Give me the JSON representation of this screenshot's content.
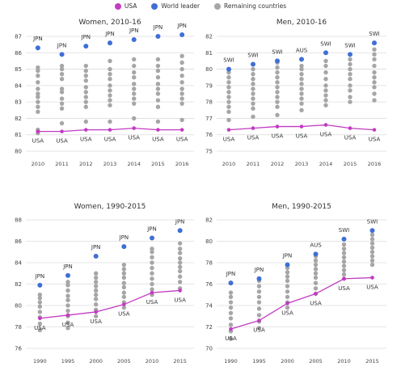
{
  "legend": {
    "items": [
      {
        "label": "USA",
        "color": "#c23bc2"
      },
      {
        "label": "World leader",
        "color": "#3f6fd6"
      },
      {
        "label": "Remaining countries",
        "color": "#a6a6a6"
      }
    ]
  },
  "chart_data": [
    {
      "type": "scatter",
      "title": "Women, 2010-16",
      "x": [
        2010,
        2011,
        2012,
        2013,
        2014,
        2015,
        2016
      ],
      "ylim": [
        80,
        87
      ],
      "yticks": [
        80,
        81,
        82,
        83,
        84,
        85,
        86,
        87
      ],
      "grid": true,
      "usa": {
        "name": "USA",
        "label": "USA",
        "values": [
          81.2,
          81.2,
          81.3,
          81.3,
          81.4,
          81.3,
          81.3
        ]
      },
      "leader": {
        "labels": [
          "JPN",
          "JPN",
          "JPN",
          "JPN",
          "JPN",
          "JPN",
          "JPN"
        ],
        "values": [
          86.3,
          85.9,
          86.4,
          86.6,
          86.8,
          87.0,
          87.1
        ]
      },
      "others": [
        [
          81.1,
          81.3,
          82.4,
          82.7,
          83.0,
          83.3,
          83.5,
          83.8,
          84.2,
          84.6,
          84.9,
          85.1
        ],
        [
          81.7,
          82.6,
          82.9,
          83.2,
          83.6,
          83.8,
          84.4,
          84.7,
          85.0,
          85.2
        ],
        [
          81.8,
          82.7,
          83.0,
          83.3,
          83.6,
          83.9,
          84.3,
          84.6,
          84.9,
          85.2
        ],
        [
          81.8,
          82.8,
          83.1,
          83.4,
          83.7,
          84.0,
          84.4,
          84.7,
          85.0,
          85.5
        ],
        [
          82.0,
          82.9,
          83.2,
          83.5,
          83.8,
          84.1,
          84.5,
          84.8,
          85.2,
          85.6
        ],
        [
          81.8,
          82.7,
          83.1,
          83.5,
          83.8,
          84.1,
          84.5,
          84.9,
          85.2,
          85.6
        ],
        [
          81.9,
          82.9,
          83.2,
          83.5,
          83.8,
          84.2,
          84.6,
          85.0,
          85.4,
          85.8
        ]
      ]
    },
    {
      "type": "scatter",
      "title": "Men, 2010-16",
      "x": [
        2010,
        2011,
        2012,
        2013,
        2014,
        2015,
        2016
      ],
      "ylim": [
        75,
        82
      ],
      "yticks": [
        75,
        76,
        77,
        78,
        79,
        80,
        81,
        82
      ],
      "grid": true,
      "usa": {
        "name": "USA",
        "label": "USA",
        "values": [
          76.3,
          76.4,
          76.5,
          76.5,
          76.6,
          76.4,
          76.3
        ]
      },
      "leader": {
        "labels": [
          "SWI",
          "SWI",
          "SWI",
          "AUS",
          "SWI",
          "SWI",
          "SWI"
        ],
        "values": [
          80.0,
          80.3,
          80.5,
          80.6,
          81.0,
          80.9,
          81.6
        ]
      },
      "others": [
        [
          76.9,
          77.4,
          77.7,
          78.0,
          78.3,
          78.6,
          78.9,
          79.2,
          79.5,
          79.8
        ],
        [
          77.1,
          77.6,
          77.9,
          78.2,
          78.5,
          78.8,
          79.1,
          79.4,
          79.7,
          80.0
        ],
        [
          77.2,
          77.7,
          78.0,
          78.3,
          78.6,
          78.9,
          79.2,
          79.5,
          79.8,
          80.1,
          80.4
        ],
        [
          77.5,
          77.9,
          78.2,
          78.5,
          78.8,
          79.1,
          79.4,
          79.7,
          80.0,
          80.2
        ],
        [
          77.8,
          78.1,
          78.4,
          78.7,
          79.0,
          79.4,
          79.8,
          80.2,
          80.5
        ],
        [
          78.0,
          78.3,
          78.7,
          79.0,
          79.4,
          79.7,
          80.0,
          80.3,
          80.6
        ],
        [
          78.1,
          78.5,
          78.9,
          79.2,
          79.5,
          79.8,
          80.2,
          80.6,
          80.9,
          81.2
        ]
      ]
    },
    {
      "type": "scatter",
      "title": "Women, 1990-2015",
      "x": [
        1990,
        1995,
        2000,
        2005,
        2010,
        2015
      ],
      "ylim": [
        76,
        88
      ],
      "yticks": [
        76,
        78,
        80,
        82,
        84,
        86,
        88
      ],
      "grid": true,
      "usa": {
        "name": "USA",
        "label": "USA",
        "values": [
          78.8,
          79.1,
          79.4,
          80.1,
          81.2,
          81.4
        ]
      },
      "leader": {
        "labels": [
          "JPN",
          "JPN",
          "JPN",
          "JPN",
          "JPN",
          "JPN"
        ],
        "values": [
          81.9,
          82.8,
          84.6,
          85.5,
          86.3,
          87.0
        ]
      },
      "others": [
        [
          77.7,
          78.3,
          78.9,
          79.4,
          79.9,
          80.3,
          80.7,
          81.0
        ],
        [
          77.9,
          78.4,
          79.0,
          79.5,
          80.0,
          80.5,
          80.9,
          81.4,
          81.9,
          82.2
        ],
        [
          79.0,
          79.6,
          80.1,
          80.6,
          81.0,
          81.4,
          81.8,
          82.2,
          82.6,
          83.0
        ],
        [
          79.8,
          80.3,
          80.8,
          81.2,
          81.7,
          82.1,
          82.6,
          83.0,
          83.4,
          83.8
        ],
        [
          81.0,
          81.5,
          82.0,
          82.5,
          83.0,
          83.5,
          84.0,
          84.5,
          85.0,
          85.3
        ],
        [
          81.6,
          82.2,
          82.7,
          83.2,
          83.6,
          84.0,
          84.4,
          84.9,
          85.3,
          85.8
        ]
      ]
    },
    {
      "type": "scatter",
      "title": "Men, 1990-2015",
      "x": [
        1990,
        1995,
        2000,
        2005,
        2010,
        2015
      ],
      "ylim": [
        70,
        82
      ],
      "yticks": [
        70,
        72,
        74,
        76,
        78,
        80,
        82
      ],
      "grid": true,
      "usa": {
        "name": "USA",
        "label": "USA",
        "values": [
          71.8,
          72.6,
          74.2,
          75.1,
          76.5,
          76.6
        ]
      },
      "leader": {
        "labels": [
          "JPN",
          "JPN",
          "JPN",
          "AUS",
          "SWI",
          "SWI"
        ],
        "values": [
          76.1,
          76.5,
          77.8,
          78.8,
          80.2,
          81.0
        ]
      },
      "others": [
        [
          70.9,
          71.6,
          72.2,
          72.8,
          73.3,
          73.8,
          74.3,
          74.8,
          75.2
        ],
        [
          71.9,
          72.5,
          73.1,
          73.7,
          74.3,
          74.8,
          75.3,
          75.8,
          76.3
        ],
        [
          73.8,
          74.3,
          74.8,
          75.3,
          75.8,
          76.3,
          76.7,
          77.1,
          77.5
        ],
        [
          75.1,
          75.6,
          76.1,
          76.6,
          77.0,
          77.4,
          77.8,
          78.2,
          78.6
        ],
        [
          76.5,
          76.9,
          77.3,
          77.7,
          78.1,
          78.5,
          78.9,
          79.3,
          79.7
        ],
        [
          77.8,
          78.2,
          78.6,
          79.0,
          79.4,
          79.8,
          80.2,
          80.6
        ]
      ]
    }
  ]
}
